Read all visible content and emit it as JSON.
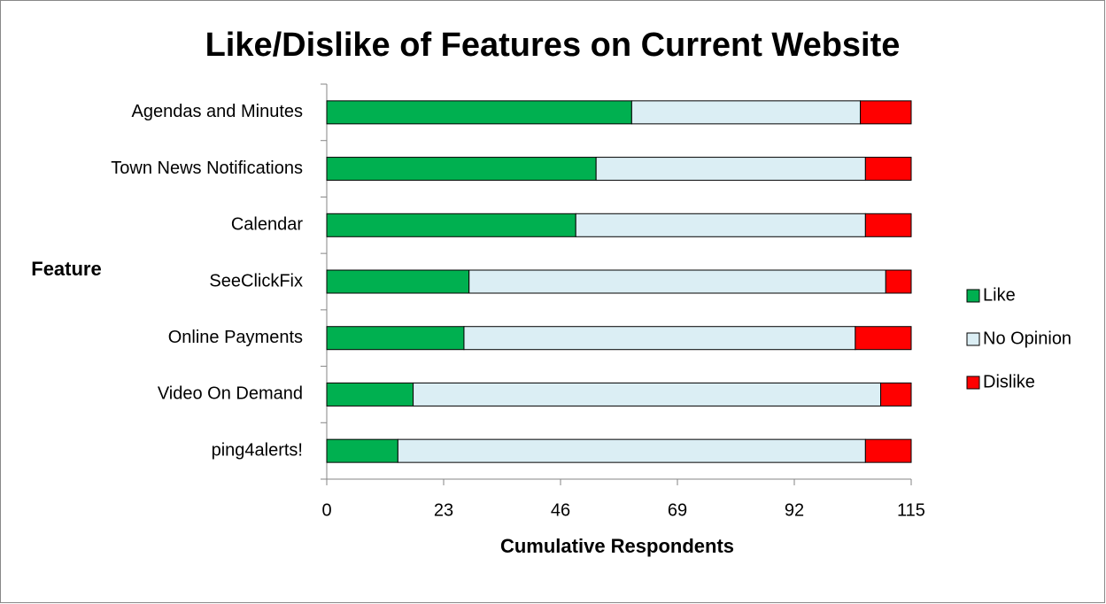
{
  "chart_data": {
    "type": "stacked_bar_horizontal",
    "title": "Like/Dislike of Features on Current Website",
    "x_label": "Cumulative Respondents",
    "y_label": "Feature",
    "categories": [
      "Agendas and Minutes",
      "Town News Notifications",
      "Calendar",
      "SeeClickFix",
      "Online Payments",
      "Video On Demand",
      "ping4alerts!"
    ],
    "series": [
      {
        "name": "Like",
        "color": "#00b050",
        "values": [
          60,
          53,
          49,
          28,
          27,
          17,
          14
        ]
      },
      {
        "name": "No Opinion",
        "color": "#dbeef4",
        "values": [
          45,
          53,
          57,
          82,
          77,
          92,
          92
        ]
      },
      {
        "name": "Dislike",
        "color": "#ff0000",
        "values": [
          10,
          9,
          9,
          5,
          11,
          6,
          9
        ]
      }
    ],
    "xlim": [
      0,
      115
    ],
    "xticks": [
      0,
      23,
      46,
      69,
      92,
      115
    ],
    "grid": false,
    "legend": "right"
  }
}
